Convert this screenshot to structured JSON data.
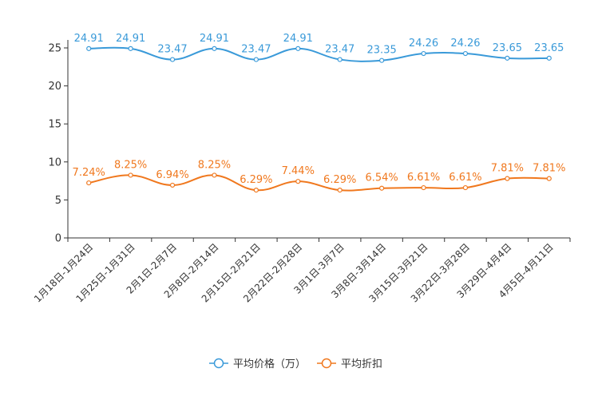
{
  "chart_data": {
    "type": "line",
    "title": "",
    "xlabel": "",
    "ylabel": "",
    "ylim": [
      0,
      25
    ],
    "yticks": [
      0,
      5,
      10,
      15,
      20,
      25
    ],
    "grid": false,
    "legend_position": "bottom-center",
    "categories": [
      "1月18日-1月24日",
      "1月25日-1月31日",
      "2月1日-2月7日",
      "2月8日-2月14日",
      "2月15日-2月21日",
      "2月22日-2月28日",
      "3月1日-3月7日",
      "3月8日-3月14日",
      "3月15日-3月21日",
      "3月22日-3月28日",
      "3月29日-4月4日",
      "4月5日-4月11日"
    ],
    "series": [
      {
        "name": "平均价格（万）",
        "color": "#3a9ad9",
        "values": [
          24.91,
          24.91,
          23.47,
          24.91,
          23.47,
          24.91,
          23.47,
          23.35,
          24.26,
          24.26,
          23.65,
          23.65
        ],
        "labels": [
          "24.91",
          "24.91",
          "23.47",
          "24.91",
          "23.47",
          "24.91",
          "23.47",
          "23.35",
          "24.26",
          "24.26",
          "23.65",
          "23.65"
        ]
      },
      {
        "name": "平均折扣",
        "color": "#f0781e",
        "values": [
          7.24,
          8.25,
          6.94,
          8.25,
          6.29,
          7.44,
          6.29,
          6.54,
          6.61,
          6.61,
          7.81,
          7.81
        ],
        "labels": [
          "7.24%",
          "8.25%",
          "6.94%",
          "8.25%",
          "6.29%",
          "7.44%",
          "6.29%",
          "6.54%",
          "6.61%",
          "6.61%",
          "7.81%",
          "7.81%"
        ]
      }
    ]
  }
}
